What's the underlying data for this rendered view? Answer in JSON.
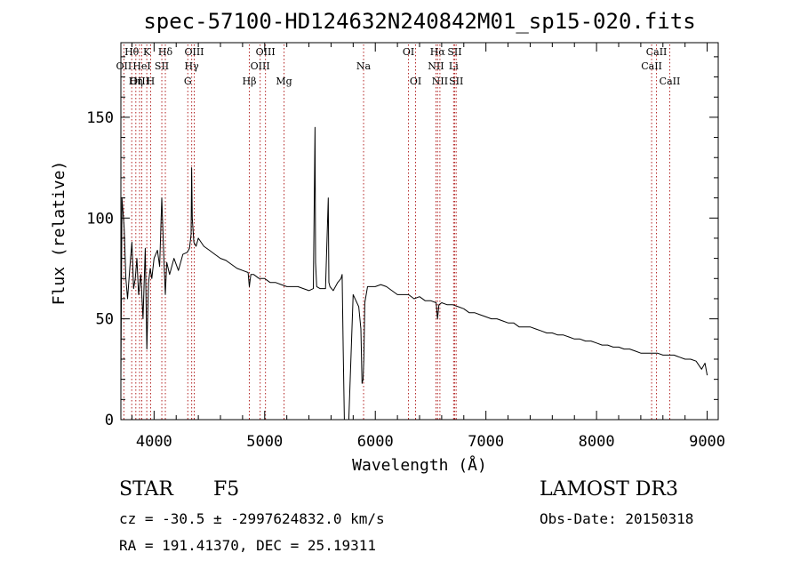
{
  "chart_data": {
    "type": "line",
    "title": "spec-57100-HD124632N240842M01_sp15-020.fits",
    "xlabel": "Wavelength (Å)",
    "ylabel": "Flux (relative)",
    "xlim": [
      3700,
      9100
    ],
    "ylim": [
      0,
      187
    ],
    "xticks": [
      4000,
      5000,
      6000,
      7000,
      8000,
      9000
    ],
    "xtick_labels": [
      "4000",
      "5000",
      "6000",
      "7000",
      "8000",
      "9000"
    ],
    "yticks": [
      0,
      50,
      100,
      150
    ],
    "ytick_labels": [
      "0",
      "50",
      "100",
      "150"
    ],
    "series": [
      {
        "name": "flux",
        "x": [
          3700,
          3710,
          3730,
          3745,
          3760,
          3780,
          3800,
          3815,
          3830,
          3845,
          3860,
          3880,
          3900,
          3920,
          3935,
          3950,
          3965,
          3980,
          4000,
          4030,
          4050,
          4070,
          4090,
          4102,
          4115,
          4140,
          4180,
          4220,
          4260,
          4300,
          4320,
          4335,
          4340,
          4345,
          4360,
          4380,
          4400,
          4450,
          4500,
          4550,
          4600,
          4650,
          4700,
          4750,
          4800,
          4850,
          4861,
          4875,
          4900,
          4950,
          5000,
          5050,
          5100,
          5150,
          5200,
          5250,
          5300,
          5350,
          5400,
          5440,
          5455,
          5460,
          5470,
          5500,
          5550,
          5575,
          5580,
          5590,
          5620,
          5660,
          5690,
          5700,
          5710,
          5720,
          5740,
          5760,
          5800,
          5850,
          5870,
          5880,
          5890,
          5896,
          5905,
          5930,
          5960,
          6000,
          6050,
          6100,
          6150,
          6200,
          6250,
          6300,
          6350,
          6400,
          6450,
          6500,
          6550,
          6562,
          6575,
          6600,
          6650,
          6700,
          6750,
          6800,
          6850,
          6900,
          6950,
          7000,
          7050,
          7100,
          7150,
          7200,
          7250,
          7300,
          7350,
          7400,
          7450,
          7500,
          7550,
          7600,
          7650,
          7700,
          7750,
          7800,
          7850,
          7900,
          7950,
          8000,
          8050,
          8100,
          8150,
          8200,
          8250,
          8300,
          8350,
          8400,
          8450,
          8500,
          8550,
          8600,
          8650,
          8700,
          8750,
          8800,
          8850,
          8900,
          8950,
          8980,
          9000
        ],
        "y": [
          20,
          110,
          95,
          70,
          60,
          75,
          88,
          65,
          70,
          80,
          62,
          72,
          50,
          85,
          35,
          68,
          75,
          70,
          80,
          84,
          76,
          110,
          78,
          62,
          78,
          72,
          80,
          74,
          82,
          83,
          85,
          92,
          125,
          100,
          88,
          86,
          90,
          86,
          84,
          82,
          80,
          79,
          77,
          75,
          74,
          73,
          66,
          72,
          72,
          70,
          70,
          68,
          68,
          67,
          66,
          66,
          66,
          65,
          64,
          65,
          145,
          78,
          66,
          65,
          65,
          110,
          68,
          66,
          64,
          68,
          70,
          72,
          35,
          0,
          0,
          0,
          62,
          56,
          45,
          18,
          20,
          30,
          58,
          66,
          66,
          66,
          67,
          66,
          64,
          62,
          62,
          62,
          60,
          61,
          59,
          59,
          58,
          50,
          57,
          58,
          57,
          57,
          56,
          55,
          53,
          53,
          52,
          51,
          50,
          50,
          49,
          48,
          48,
          46,
          46,
          46,
          45,
          44,
          43,
          43,
          42,
          42,
          41,
          40,
          40,
          39,
          39,
          38,
          37,
          37,
          36,
          36,
          35,
          35,
          34,
          33,
          33,
          33,
          33,
          32,
          32,
          32,
          31,
          30,
          30,
          29,
          25,
          28,
          22
        ]
      }
    ],
    "line_labels": [
      {
        "label": "Hθ",
        "wavelength": 3798,
        "row": 1
      },
      {
        "label": "OII",
        "wavelength": 3727,
        "row": 2
      },
      {
        "label": "OIII",
        "wavelength": 3869,
        "row": 3
      },
      {
        "label": "K",
        "wavelength": 3934,
        "row": 1
      },
      {
        "label": "HeI",
        "wavelength": 3889,
        "row": 2
      },
      {
        "label": "Hη",
        "wavelength": 3835,
        "row": 3
      },
      {
        "label": "H",
        "wavelength": 3969,
        "row": 3
      },
      {
        "label": "SII",
        "wavelength": 4070,
        "row": 2
      },
      {
        "label": "Hδ",
        "wavelength": 4102,
        "row": 1
      },
      {
        "label": "OIII",
        "wavelength": 4363,
        "row": 1
      },
      {
        "label": "Hγ",
        "wavelength": 4340,
        "row": 2
      },
      {
        "label": "G",
        "wavelength": 4305,
        "row": 3
      },
      {
        "label": "OIII",
        "wavelength": 5007,
        "row": 1
      },
      {
        "label": "OIII",
        "wavelength": 4959,
        "row": 2
      },
      {
        "label": "Hβ",
        "wavelength": 4861,
        "row": 3
      },
      {
        "label": "Mg",
        "wavelength": 5175,
        "row": 3
      },
      {
        "label": "Na",
        "wavelength": 5894,
        "row": 2
      },
      {
        "label": "OI",
        "wavelength": 6300,
        "row": 1
      },
      {
        "label": "OI",
        "wavelength": 6364,
        "row": 3
      },
      {
        "label": "Hα",
        "wavelength": 6563,
        "row": 1
      },
      {
        "label": "NII",
        "wavelength": 6548,
        "row": 2
      },
      {
        "label": "NII",
        "wavelength": 6584,
        "row": 3
      },
      {
        "label": "SII",
        "wavelength": 6717,
        "row": 1
      },
      {
        "label": "Li",
        "wavelength": 6708,
        "row": 2
      },
      {
        "label": "SII",
        "wavelength": 6731,
        "row": 3
      },
      {
        "label": "CaII",
        "wavelength": 8542,
        "row": 1
      },
      {
        "label": "CaII",
        "wavelength": 8498,
        "row": 2
      },
      {
        "label": "CaII",
        "wavelength": 8662,
        "row": 3
      }
    ]
  },
  "info": {
    "class_label": "STAR",
    "subclass": "F5",
    "survey": "LAMOST DR3",
    "redshift_text": "cz = -30.5 ± -2997624832.0 km/s",
    "coords_text": "RA = 191.41370, DEC =  25.19311",
    "obs_date_text": "Obs-Date: 20150318"
  },
  "colors": {
    "line": "#000000",
    "marker": "#b22222",
    "background": "#ffffff"
  }
}
